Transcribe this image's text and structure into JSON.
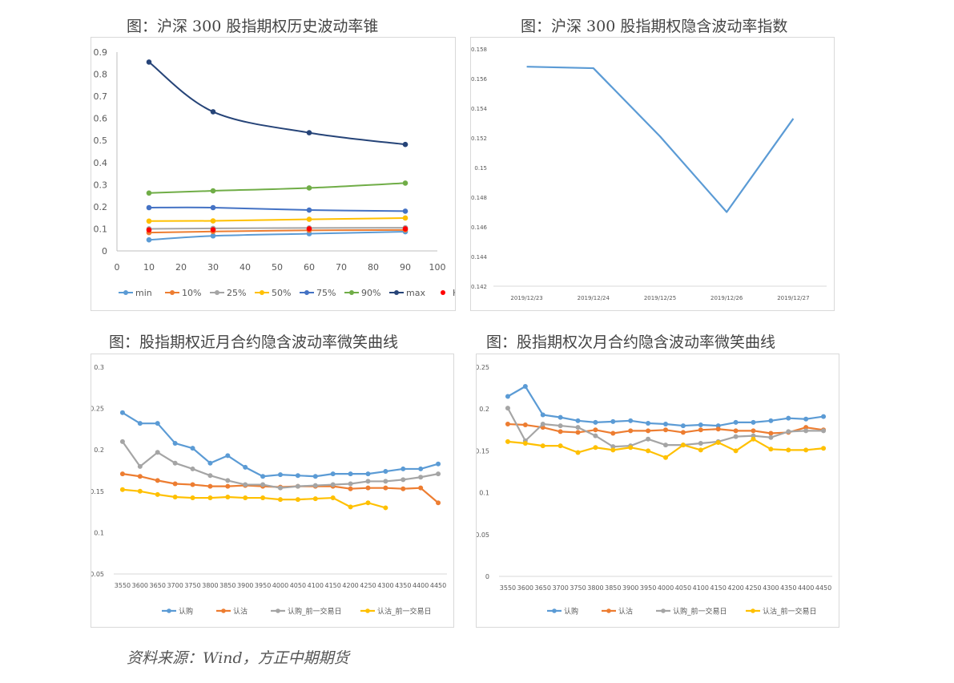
{
  "titles": {
    "tl": "图：沪深 300 股指期权历史波动率锥",
    "tr": "图：沪深 300 股指期权隐含波动率指数",
    "bl": "图：股指期权近月合约隐含波动率微笑曲线",
    "br": "图：股指期权次月合约隐含波动率微笑曲线"
  },
  "source": "资料来源：Wind，方正中期期货",
  "chart_data": [
    {
      "id": "cone",
      "type": "scatter",
      "title": "图：沪深 300 股指期权历史波动率锥",
      "x": [
        10,
        30,
        60,
        90
      ],
      "xlim": [
        0,
        100
      ],
      "xticks": [
        "0",
        "10",
        "20",
        "30",
        "40",
        "50",
        "60",
        "70",
        "80",
        "90",
        "100"
      ],
      "ylim": [
        0,
        0.9
      ],
      "yticks": [
        "0",
        "0.1",
        "0.2",
        "0.3",
        "0.4",
        "0.5",
        "0.6",
        "0.7",
        "0.8",
        "0.9"
      ],
      "smooth": true,
      "grid": false,
      "legend_position": "bottom",
      "series": [
        {
          "name": "min",
          "color": "#5b9bd5",
          "values": [
            0.05,
            0.068,
            0.078,
            0.087
          ]
        },
        {
          "name": "10%",
          "color": "#ed7d31",
          "values": [
            0.083,
            0.088,
            0.093,
            0.095
          ]
        },
        {
          "name": "25%",
          "color": "#a5a5a5",
          "values": [
            0.1,
            0.102,
            0.104,
            0.105
          ]
        },
        {
          "name": "50%",
          "color": "#ffc000",
          "values": [
            0.135,
            0.136,
            0.143,
            0.149
          ]
        },
        {
          "name": "75%",
          "color": "#4472c4",
          "values": [
            0.196,
            0.196,
            0.185,
            0.18
          ]
        },
        {
          "name": "90%",
          "color": "#70ad47",
          "values": [
            0.262,
            0.272,
            0.285,
            0.307
          ]
        },
        {
          "name": "max",
          "color": "#264478",
          "values": [
            0.855,
            0.63,
            0.535,
            0.482
          ]
        },
        {
          "name": "HV",
          "color": "#ff0000",
          "line": false,
          "values": [
            0.095,
            0.096,
            0.1,
            0.1
          ]
        }
      ]
    },
    {
      "id": "ivindex",
      "type": "line",
      "title": "图：沪深 300 股指期权隐含波动率指数",
      "categories": [
        "2019/12/23",
        "2019/12/24",
        "2019/12/25",
        "2019/12/26",
        "2019/12/27"
      ],
      "ylim": [
        0.142,
        0.158
      ],
      "yticks": [
        "0.142",
        "0.144",
        "0.146",
        "0.148",
        "0.15",
        "0.152",
        "0.154",
        "0.156",
        "0.158"
      ],
      "grid": false,
      "series": [
        {
          "color": "#5b9bd5",
          "markers": false,
          "values": [
            0.1568,
            0.1567,
            0.1521,
            0.147,
            0.1533
          ]
        }
      ]
    },
    {
      "id": "smile_near",
      "type": "line",
      "title": "图：股指期权近月合约隐含波动率微笑曲线",
      "categories": [
        "3550",
        "3600",
        "3650",
        "3700",
        "3750",
        "3800",
        "3850",
        "3900",
        "3950",
        "4000",
        "4050",
        "4100",
        "4150",
        "4200",
        "4250",
        "4300",
        "4350",
        "4400",
        "4450"
      ],
      "ylim": [
        0.05,
        0.3
      ],
      "yticks": [
        "0.05",
        "0.1",
        "0.15",
        "0.2",
        "0.25",
        "0.3"
      ],
      "grid": false,
      "legend_position": "bottom",
      "series": [
        {
          "name": "认购",
          "color": "#5b9bd5",
          "values": [
            0.245,
            0.232,
            0.232,
            0.208,
            0.202,
            0.184,
            0.193,
            0.179,
            0.168,
            0.17,
            0.169,
            0.168,
            0.171,
            0.171,
            0.171,
            0.174,
            0.177,
            0.177,
            0.183
          ]
        },
        {
          "name": "认沽",
          "color": "#ed7d31",
          "values": [
            0.171,
            0.168,
            0.163,
            0.159,
            0.158,
            0.156,
            0.156,
            0.157,
            0.156,
            0.155,
            0.156,
            0.156,
            0.156,
            0.153,
            0.154,
            0.154,
            0.153,
            0.154,
            0.136
          ]
        },
        {
          "name": "认购_前一交易日",
          "color": "#a5a5a5",
          "values": [
            0.21,
            0.18,
            0.197,
            0.184,
            0.177,
            0.169,
            0.163,
            0.158,
            0.158,
            0.154,
            0.156,
            0.157,
            0.158,
            0.159,
            0.162,
            0.162,
            0.164,
            0.167,
            0.171
          ]
        },
        {
          "name": "认沽_前一交易日",
          "color": "#ffc000",
          "values": [
            0.152,
            0.15,
            0.146,
            0.143,
            0.142,
            0.142,
            0.143,
            0.142,
            0.142,
            0.14,
            0.14,
            0.141,
            0.142,
            0.131,
            0.136,
            0.13,
            null,
            null,
            null
          ]
        }
      ]
    },
    {
      "id": "smile_next",
      "type": "line",
      "title": "图：股指期权次月合约隐含波动率微笑曲线",
      "categories": [
        "3550",
        "3600",
        "3650",
        "3700",
        "3750",
        "3800",
        "3850",
        "3900",
        "3950",
        "4000",
        "4050",
        "4100",
        "4150",
        "4200",
        "4250",
        "4300",
        "4350",
        "4400",
        "4450"
      ],
      "ylim": [
        0,
        0.25
      ],
      "yticks": [
        "0",
        "0.05",
        "0.1",
        "0.15",
        "0.2",
        "0.25"
      ],
      "grid": false,
      "legend_position": "bottom",
      "series": [
        {
          "name": "认购",
          "color": "#5b9bd5",
          "values": [
            0.215,
            0.227,
            0.193,
            0.19,
            0.186,
            0.184,
            0.185,
            0.186,
            0.183,
            0.182,
            0.18,
            0.181,
            0.18,
            0.184,
            0.184,
            0.186,
            0.189,
            0.188,
            0.191
          ]
        },
        {
          "name": "认沽",
          "color": "#ed7d31",
          "values": [
            0.182,
            0.181,
            0.178,
            0.173,
            0.172,
            0.175,
            0.171,
            0.174,
            0.174,
            0.175,
            0.172,
            0.175,
            0.176,
            0.174,
            0.174,
            0.171,
            0.172,
            0.178,
            0.175
          ]
        },
        {
          "name": "认购_前一交易日",
          "color": "#a5a5a5",
          "values": [
            0.201,
            0.162,
            0.182,
            0.18,
            0.178,
            0.168,
            0.155,
            0.156,
            0.164,
            0.157,
            0.157,
            0.159,
            0.161,
            0.167,
            0.168,
            0.166,
            0.173,
            0.174,
            0.174
          ]
        },
        {
          "name": "认沽_前一交易日",
          "color": "#ffc000",
          "values": [
            0.161,
            0.159,
            0.156,
            0.156,
            0.148,
            0.154,
            0.151,
            0.154,
            0.15,
            0.142,
            0.157,
            0.151,
            0.16,
            0.15,
            0.164,
            0.152,
            0.151,
            0.151,
            0.153
          ]
        }
      ]
    }
  ]
}
